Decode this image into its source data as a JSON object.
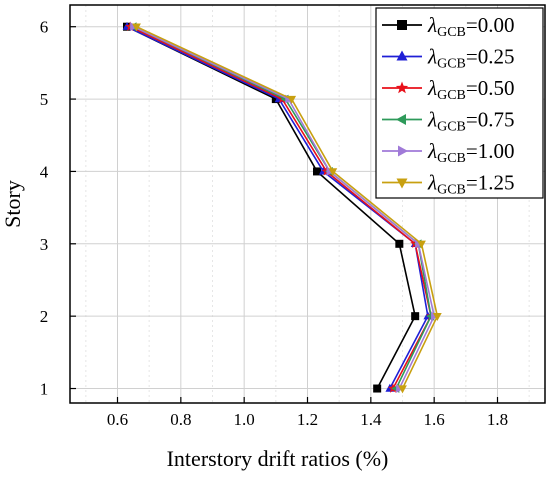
{
  "chart_data": {
    "type": "line",
    "title": "",
    "xlabel": "Interstory drift ratios (%)",
    "ylabel": "Story",
    "xlim": [
      0.45,
      1.95
    ],
    "ylim": [
      0.8,
      6.3
    ],
    "xticks": [
      0.6,
      0.8,
      1.0,
      1.2,
      1.4,
      1.6,
      1.8
    ],
    "xtick_labels": [
      "0.6",
      "0.8",
      "1.0",
      "1.2",
      "1.4",
      "1.6",
      "1.8"
    ],
    "yticks": [
      1,
      2,
      3,
      4,
      5,
      6
    ],
    "ytick_labels": [
      "1",
      "2",
      "3",
      "4",
      "5",
      "6"
    ],
    "grid": true,
    "legend_position": "top-right",
    "legend_symbol": "λ",
    "legend_subscript": "GCB",
    "y": [
      1,
      2,
      3,
      4,
      5,
      6
    ],
    "series": [
      {
        "name": "=0.00",
        "marker": "square",
        "color": "#000000",
        "values": [
          1.42,
          1.54,
          1.49,
          1.23,
          1.1,
          0.63
        ]
      },
      {
        "name": "=0.25",
        "marker": "triangle-up",
        "color": "#1f1fd6",
        "values": [
          1.46,
          1.58,
          1.54,
          1.25,
          1.11,
          0.63
        ]
      },
      {
        "name": "=0.50",
        "marker": "star",
        "color": "#e8101a",
        "values": [
          1.47,
          1.59,
          1.54,
          1.26,
          1.12,
          0.64
        ]
      },
      {
        "name": "=0.75",
        "marker": "triangle-left",
        "color": "#2e9a5a",
        "values": [
          1.48,
          1.59,
          1.55,
          1.27,
          1.13,
          0.65
        ]
      },
      {
        "name": "=1.00",
        "marker": "triangle-right",
        "color": "#a07ad8",
        "values": [
          1.49,
          1.6,
          1.55,
          1.27,
          1.14,
          0.65
        ]
      },
      {
        "name": "=1.25",
        "marker": "triangle-down",
        "color": "#c8a010",
        "values": [
          1.5,
          1.61,
          1.56,
          1.28,
          1.15,
          0.66
        ]
      }
    ]
  }
}
